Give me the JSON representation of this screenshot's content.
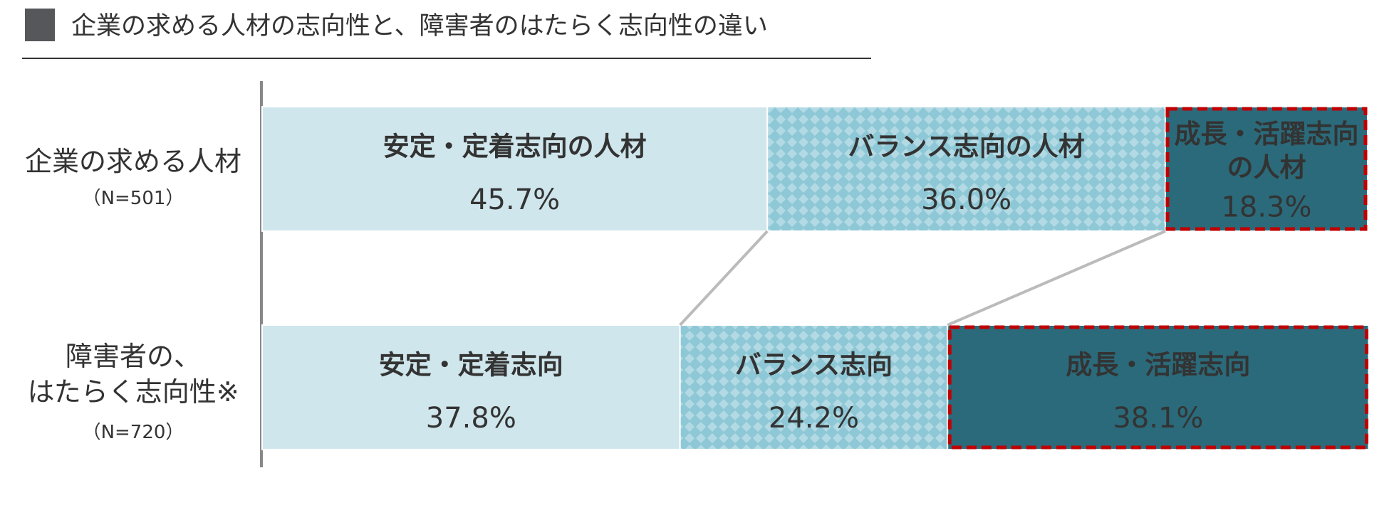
{
  "chart_data": {
    "type": "stacked-bar-horizontal",
    "title": "企業の求める人材の志向性と、障害者のはたらく志向性の違い",
    "categories": [
      [
        "企業の求める人材"
      ],
      [
        "障害者の、",
        "はたらく志向性※"
      ]
    ],
    "category_notes": [
      "（N=501）",
      "（N=720）"
    ],
    "xlim": [
      0,
      100
    ],
    "highlight_series": 2,
    "series": [
      {
        "color": "#cfe6ec",
        "text_color": "#333333",
        "pattern": false,
        "segment_labels": [
          [
            "安定・定着志向の人材"
          ],
          [
            "安定・定着志向"
          ]
        ],
        "values": [
          45.7,
          37.8
        ],
        "value_labels": [
          "45.7%",
          "37.8%"
        ]
      },
      {
        "color": "#8ec8d6",
        "text_color": "#333333",
        "pattern": true,
        "segment_labels": [
          [
            "バランス志向の人材"
          ],
          [
            "バランス志向"
          ]
        ],
        "values": [
          36.0,
          24.2
        ],
        "value_labels": [
          "36.0%",
          "24.2%"
        ]
      },
      {
        "color": "#2b6a7a",
        "text_color": "#ffffff",
        "pattern": false,
        "segment_labels": [
          [
            "成長・活躍志向",
            "の人材"
          ],
          [
            "成長・活躍志向"
          ]
        ],
        "values": [
          18.3,
          38.1
        ],
        "value_labels": [
          "18.3%",
          "38.1%"
        ]
      }
    ]
  }
}
